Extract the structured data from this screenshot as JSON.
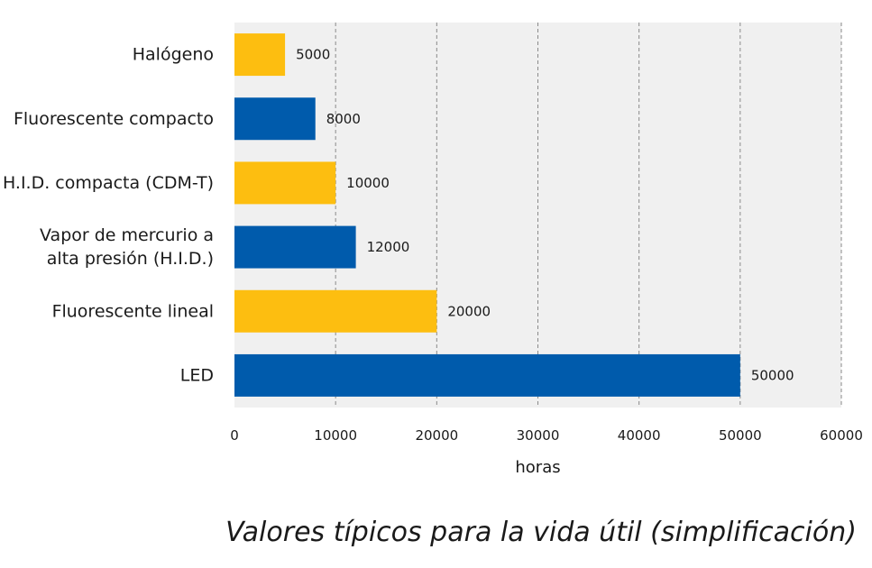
{
  "chart_data": {
    "type": "bar",
    "orientation": "horizontal",
    "categories": [
      [
        "Halógeno"
      ],
      [
        "Fluorescente compacto"
      ],
      [
        "H.I.D. compacta (CDM-T)"
      ],
      [
        "Vapor de mercurio a",
        "alta presión  (H.I.D.)"
      ],
      [
        "Fluorescente lineal"
      ],
      [
        "LED"
      ]
    ],
    "values": [
      5000,
      8000,
      10000,
      12000,
      20000,
      50000
    ],
    "data_labels": [
      "5000",
      "8000",
      "10000",
      "12000",
      "20000",
      "50000"
    ],
    "bar_colors": [
      "#FDBE10",
      "#005BAC",
      "#FDBE10",
      "#005BAC",
      "#FDBE10",
      "#005BAC"
    ],
    "xlim": [
      0,
      60000
    ],
    "xticks": [
      0,
      10000,
      20000,
      30000,
      40000,
      50000,
      60000
    ],
    "xtick_labels": [
      "0",
      "10000",
      "20000",
      "30000",
      "40000",
      "50000",
      "60000"
    ],
    "xlabel": "horas",
    "caption": "Valores típicos para la vida útil (simplificación)",
    "grid": "vertical dashed",
    "plot_background": "#F0F0F0",
    "legend": "none"
  }
}
